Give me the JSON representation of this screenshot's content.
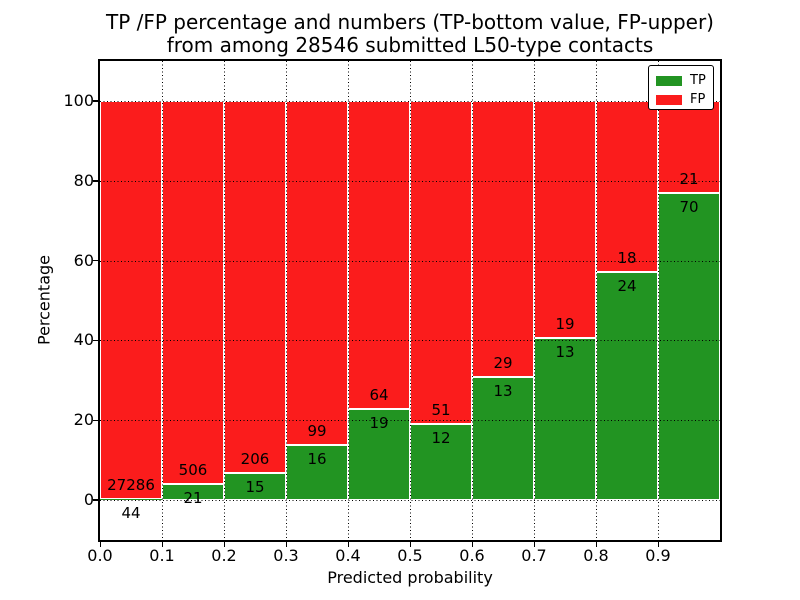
{
  "title": {
    "line1": "TP /FP percentage and numbers (TP-bottom value, FP-upper)",
    "line2": "from among 28546 submitted L50-type contacts"
  },
  "legend": {
    "items": [
      {
        "label": "TP",
        "color": "#229422"
      },
      {
        "label": "FP",
        "color": "#fb1c1c"
      }
    ]
  },
  "chart_data": {
    "type": "bar",
    "stacked": true,
    "y_units": "percent",
    "title": "TP /FP percentage and numbers (TP-bottom value, FP-upper) from among 28546 submitted L50-type contacts",
    "xlabel": "Predicted probability",
    "ylabel": "Percentage",
    "total_submitted_contacts": 28546,
    "xlim": [
      0.0,
      1.0
    ],
    "ylim": [
      -10,
      110
    ],
    "grid": "dotted",
    "legend_position": "upper right",
    "x_tick_labels": [
      "0.0",
      "0.1",
      "0.2",
      "0.3",
      "0.4",
      "0.5",
      "0.6",
      "0.7",
      "0.8",
      "0.9"
    ],
    "y_tick_values": [
      0,
      20,
      40,
      60,
      80,
      100
    ],
    "y_tick_labels": [
      "0",
      "20",
      "40",
      "60",
      "80",
      "100"
    ],
    "bins": [
      "0.0-0.1",
      "0.1-0.2",
      "0.2-0.3",
      "0.3-0.4",
      "0.4-0.5",
      "0.5-0.6",
      "0.6-0.7",
      "0.7-0.8",
      "0.8-0.9",
      "0.9-1.0"
    ],
    "series": [
      {
        "name": "TP",
        "color": "#229422",
        "position": "bottom",
        "counts": [
          44,
          21,
          15,
          16,
          19,
          12,
          13,
          13,
          24,
          70
        ],
        "percent": [
          0.16,
          3.98,
          6.79,
          13.91,
          22.89,
          19.05,
          30.95,
          40.63,
          57.14,
          76.92
        ]
      },
      {
        "name": "FP",
        "color": "#fb1c1c",
        "position": "top",
        "counts": [
          27286,
          506,
          206,
          99,
          64,
          51,
          29,
          19,
          18,
          21
        ],
        "percent": [
          99.84,
          96.02,
          93.21,
          86.09,
          77.11,
          80.95,
          69.05,
          59.38,
          42.86,
          23.08
        ]
      }
    ]
  }
}
